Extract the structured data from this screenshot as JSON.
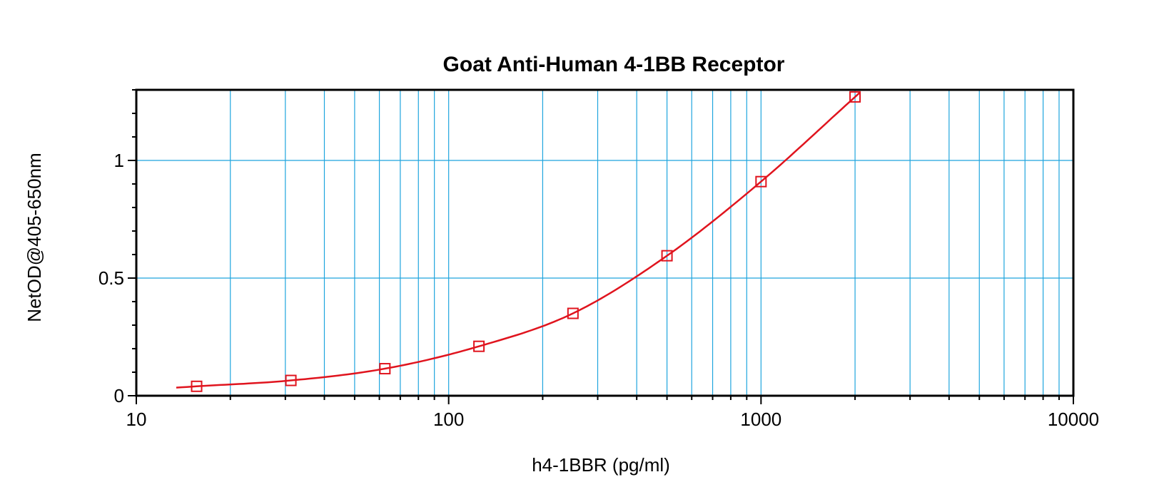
{
  "chart_data": {
    "type": "scatter",
    "title": "Goat Anti-Human 4-1BB Receptor",
    "xlabel": "h4-1BBR (pg/ml)",
    "ylabel": "NetOD@405-650nm",
    "x_scale": "log",
    "xlim": [
      10,
      10000
    ],
    "ylim": [
      0,
      1.3
    ],
    "x_ticks": [
      10,
      100,
      1000,
      10000
    ],
    "x_tick_labels": [
      "10",
      "100",
      "1000",
      "10000"
    ],
    "y_ticks": [
      0,
      0.5,
      1
    ],
    "y_tick_labels": [
      "0",
      "0.5",
      "1"
    ],
    "grid": true,
    "series": [
      {
        "marker": "square",
        "points": [
          {
            "x": 15.6,
            "y": 0.04
          },
          {
            "x": 31.25,
            "y": 0.065
          },
          {
            "x": 62.5,
            "y": 0.115
          },
          {
            "x": 125,
            "y": 0.21
          },
          {
            "x": 250,
            "y": 0.35
          },
          {
            "x": 500,
            "y": 0.595
          },
          {
            "x": 1000,
            "y": 0.91
          },
          {
            "x": 2000,
            "y": 1.27
          }
        ]
      }
    ],
    "fit_curve": {
      "x_range": [
        13,
        2100
      ]
    },
    "colors": {
      "series": "#e0141e",
      "grid": "#1fa5de",
      "axis": "#000000"
    }
  }
}
